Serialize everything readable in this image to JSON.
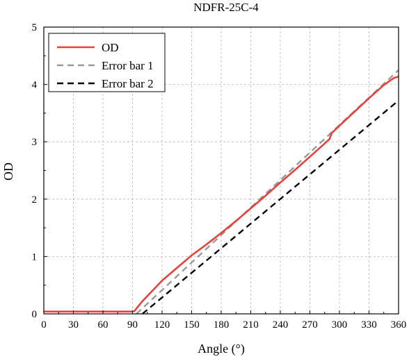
{
  "chart_data": {
    "type": "line",
    "title": "NDFR-25C-4",
    "xlabel": "Angle (°)",
    "ylabel": "OD",
    "xlim": [
      0,
      360
    ],
    "ylim": [
      0,
      5
    ],
    "x_ticks": [
      "0",
      "30",
      "60",
      "90",
      "120",
      "150",
      "180",
      "210",
      "240",
      "270",
      "300",
      "330",
      "360"
    ],
    "y_ticks": [
      "0",
      "1",
      "2",
      "3",
      "4",
      "5"
    ],
    "grid": true,
    "legend_position": "top-left",
    "series": [
      {
        "name": "OD",
        "color": "#e8413c",
        "style": "solid",
        "x": [
          0,
          90,
          92,
          100,
          110,
          120,
          135,
          150,
          165,
          180,
          195,
          210,
          225,
          240,
          255,
          270,
          285,
          290,
          292,
          300,
          315,
          330,
          345,
          355,
          360
        ],
        "y": [
          0.04,
          0.04,
          0.05,
          0.22,
          0.4,
          0.58,
          0.8,
          1.02,
          1.21,
          1.41,
          1.62,
          1.84,
          2.06,
          2.29,
          2.51,
          2.74,
          2.97,
          3.05,
          3.15,
          3.28,
          3.52,
          3.76,
          3.99,
          4.11,
          4.14
        ]
      },
      {
        "name": "Error bar 1",
        "color": "#999999",
        "style": "dashed",
        "x": [
          94,
          360
        ],
        "y": [
          0.0,
          4.25
        ]
      },
      {
        "name": "Error bar 2",
        "color": "#000000",
        "style": "dashed",
        "x": [
          100,
          360
        ],
        "y": [
          0.0,
          3.72
        ]
      }
    ]
  }
}
